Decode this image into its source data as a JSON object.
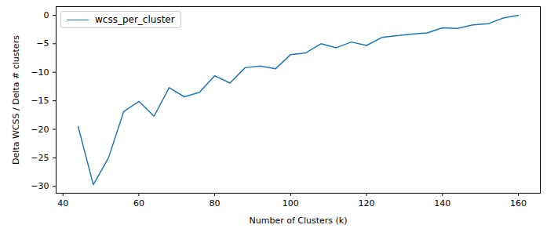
{
  "chart_data": {
    "type": "line",
    "x_label": "Number of Clusters (k)",
    "y_label": "Delta WCSS / Delta # clusters",
    "x": [
      44,
      48,
      52,
      56,
      60,
      64,
      68,
      72,
      76,
      80,
      84,
      88,
      92,
      96,
      100,
      104,
      108,
      112,
      116,
      120,
      124,
      128,
      132,
      136,
      140,
      144,
      148,
      152,
      156,
      160
    ],
    "series": [
      {
        "name": "wcss_per_cluster",
        "color": "#1f77b4",
        "values": [
          -19.5,
          -29.7,
          -25.0,
          -16.9,
          -15.1,
          -17.7,
          -12.7,
          -14.3,
          -13.5,
          -10.6,
          -11.9,
          -9.2,
          -8.9,
          -9.4,
          -6.9,
          -6.6,
          -5.0,
          -5.7,
          -4.7,
          -5.3,
          -3.9,
          -3.6,
          -3.3,
          -3.1,
          -2.2,
          -2.3,
          -1.7,
          -1.5,
          -0.5,
          0.0
        ]
      }
    ],
    "xlim": [
      38.2,
      165.8
    ],
    "ylim": [
      -31.2,
      1.5
    ],
    "xticks": [
      40,
      60,
      80,
      100,
      120,
      140,
      160
    ],
    "yticks": [
      -30,
      -25,
      -20,
      -15,
      -10,
      -5,
      0
    ],
    "legend": "upper left",
    "grid": false
  }
}
